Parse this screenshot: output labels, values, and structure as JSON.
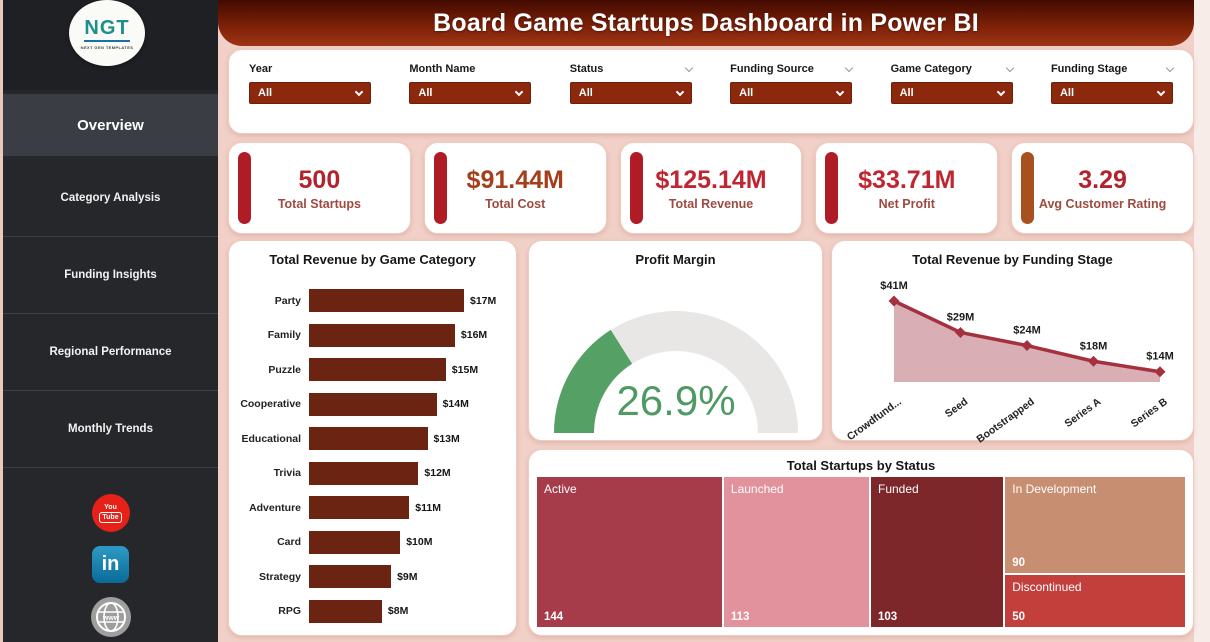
{
  "page": {
    "title": "Board Game Startups Dashboard in Power BI"
  },
  "sidebar": {
    "logo": {
      "text": "NGT",
      "subtext": "NEXT GEN TEMPLATES"
    },
    "items": [
      {
        "label": "Overview",
        "active": true
      },
      {
        "label": "Category Analysis",
        "active": false
      },
      {
        "label": "Funding Insights",
        "active": false
      },
      {
        "label": "Regional Performance",
        "active": false
      },
      {
        "label": "Monthly Trends",
        "active": false
      }
    ],
    "social": [
      "YouTube",
      "LinkedIn",
      "Website"
    ],
    "youtube_line1": "You",
    "youtube_line2": "Tube",
    "linkedin_text": "in",
    "globe_text": "www"
  },
  "filters": {
    "slicers": [
      {
        "label": "Year",
        "value": "All",
        "header_chevron": false
      },
      {
        "label": "Month Name",
        "value": "All",
        "header_chevron": false
      },
      {
        "label": "Status",
        "value": "All",
        "header_chevron": true
      },
      {
        "label": "Funding Source",
        "value": "All",
        "header_chevron": true
      },
      {
        "label": "Game Category",
        "value": "All",
        "header_chevron": true
      },
      {
        "label": "Funding Stage",
        "value": "All",
        "header_chevron": true
      }
    ]
  },
  "kpis": [
    {
      "value": "500",
      "label": "Total Startups",
      "accent": "#B01C26",
      "value_color": "#B3232E"
    },
    {
      "value": "$91.44M",
      "label": "Total Cost",
      "accent": "#B01C26",
      "value_color": "#A63E1C"
    },
    {
      "value": "$125.14M",
      "label": "Total Revenue",
      "accent": "#B01C26",
      "value_color": "#C02631"
    },
    {
      "value": "$33.71M",
      "label": "Net Profit",
      "accent": "#B01C26",
      "value_color": "#C02631"
    },
    {
      "value": "3.29",
      "label": "Avg Customer Rating",
      "accent": "#A8501E",
      "value_color": "#B3232E"
    }
  ],
  "chart_data": [
    {
      "type": "bar",
      "title": "Total Revenue by Game Category",
      "orientation": "horizontal",
      "categories": [
        "Party",
        "Family",
        "Puzzle",
        "Cooperative",
        "Educational",
        "Trivia",
        "Adventure",
        "Card",
        "Strategy",
        "RPG"
      ],
      "values": [
        17,
        16,
        15,
        14,
        13,
        12,
        11,
        10,
        9,
        8
      ],
      "labels": [
        "$17M",
        "$16M",
        "$15M",
        "$14M",
        "$13M",
        "$12M",
        "$11M",
        "$10M",
        "$9M",
        "$8M"
      ],
      "xlim": [
        0,
        17
      ],
      "bar_color": "#6B2412"
    },
    {
      "type": "gauge",
      "title": "Profit Margin",
      "value_pct": 26.9,
      "value_label": "26.9%",
      "range": [
        0,
        84
      ],
      "color": "#55A065",
      "track_color": "#E9E7E5",
      "value_text_color": "#4F9A63"
    },
    {
      "type": "area",
      "title": "Total Revenue by Funding Stage",
      "categories": [
        "Crowdfund...",
        "Seed",
        "Bootstrapped",
        "Series A",
        "Series B"
      ],
      "values": [
        41,
        29,
        24,
        18,
        14
      ],
      "labels": [
        "$41M",
        "$29M",
        "$24M",
        "$18M",
        "$14M"
      ],
      "ylim": [
        0,
        45
      ],
      "line_color": "#A5303E",
      "fill_color": "#D9AEB4",
      "marker": "diamond"
    },
    {
      "type": "treemap",
      "title": "Total Startups by Status",
      "items": [
        {
          "label": "Active",
          "value": 144,
          "color": "#A63B49"
        },
        {
          "label": "Launched",
          "value": 113,
          "color": "#E2929D"
        },
        {
          "label": "Funded",
          "value": 103,
          "color": "#7D272B"
        },
        {
          "label": "In Development",
          "value": 90,
          "color": "#C78E72"
        },
        {
          "label": "Discontinued",
          "value": 50,
          "color": "#C23F3C"
        }
      ]
    }
  ]
}
